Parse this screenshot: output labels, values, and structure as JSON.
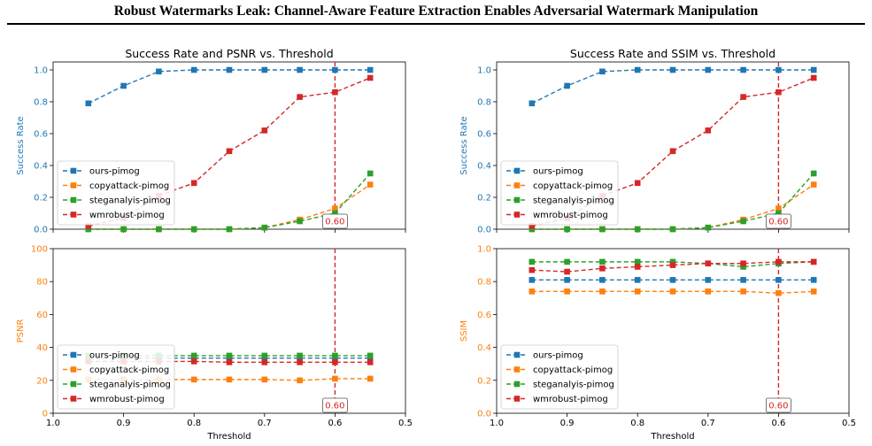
{
  "paper_title": "Robust Watermarks Leak: Channel-Aware Feature Extraction Enables Adversarial Watermark Manipulation",
  "chart_data": [
    {
      "type": "line",
      "title": "Success Rate and PSNR vs. Threshold",
      "xlabel": "Threshold",
      "xlim": [
        1.0,
        0.5
      ],
      "xticks": [
        "1.0",
        "0.9",
        "0.8",
        "0.7",
        "0.6",
        "0.5"
      ],
      "x": [
        0.95,
        0.9,
        0.85,
        0.8,
        0.75,
        0.7,
        0.65,
        0.6,
        0.55
      ],
      "threshold_line": {
        "x": 0.6,
        "label": "0.60",
        "color": "#d62728"
      },
      "top": {
        "ylabel": "Success Rate",
        "ylabel_color": "#1f77b4",
        "ylim": [
          0,
          1.05
        ],
        "yticks": [
          "0.0",
          "0.2",
          "0.4",
          "0.6",
          "0.8",
          "1.0"
        ],
        "legend": "lower-left",
        "series": [
          {
            "name": "ours-pimog",
            "color": "#1f77b4",
            "values": [
              0.79,
              0.9,
              0.99,
              1.0,
              1.0,
              1.0,
              1.0,
              1.0,
              1.0
            ]
          },
          {
            "name": "copyattack-pimog",
            "color": "#ff7f0e",
            "values": [
              0.0,
              0.0,
              0.0,
              0.0,
              0.0,
              0.01,
              0.06,
              0.13,
              0.28
            ]
          },
          {
            "name": "steganalyis-pimog",
            "color": "#2ca02c",
            "values": [
              0.0,
              0.0,
              0.0,
              0.0,
              0.0,
              0.01,
              0.05,
              0.1,
              0.35
            ]
          },
          {
            "name": "wmrobust-pimog",
            "color": "#d62728",
            "values": [
              0.02,
              0.07,
              0.21,
              0.29,
              0.49,
              0.62,
              0.83,
              0.86,
              0.95
            ]
          }
        ]
      },
      "bottom": {
        "ylabel": "PSNR",
        "ylabel_color": "#ff7f0e",
        "ylim": [
          0,
          100
        ],
        "yticks": [
          "0",
          "20",
          "40",
          "60",
          "80",
          "100"
        ],
        "legend": "lower-left",
        "series": [
          {
            "name": "ours-pimog",
            "color": "#1f77b4",
            "values": [
              33.5,
              33.5,
              33.5,
              33.5,
              33.5,
              33.5,
              33.5,
              33.5,
              33.5
            ]
          },
          {
            "name": "copyattack-pimog",
            "color": "#ff7f0e",
            "values": [
              20.5,
              20.5,
              20.5,
              20.5,
              20.5,
              20.5,
              20,
              21,
              21
            ]
          },
          {
            "name": "steganalyis-pimog",
            "color": "#2ca02c",
            "values": [
              35,
              35,
              35,
              35,
              35,
              35,
              35,
              35,
              35
            ]
          },
          {
            "name": "wmrobust-pimog",
            "color": "#d62728",
            "values": [
              31.5,
              31.5,
              31.5,
              31.5,
              31,
              31,
              31,
              31,
              31
            ]
          }
        ]
      }
    },
    {
      "type": "line",
      "title": "Success Rate and SSIM vs. Threshold",
      "xlabel": "Threshold",
      "xlim": [
        1.0,
        0.5
      ],
      "xticks": [
        "1.0",
        "0.9",
        "0.8",
        "0.7",
        "0.6",
        "0.5"
      ],
      "x": [
        0.95,
        0.9,
        0.85,
        0.8,
        0.75,
        0.7,
        0.65,
        0.6,
        0.55
      ],
      "threshold_line": {
        "x": 0.6,
        "label": "0.60",
        "color": "#d62728"
      },
      "top": {
        "ylabel": "Success Rate",
        "ylabel_color": "#1f77b4",
        "ylim": [
          0,
          1.05
        ],
        "yticks": [
          "0.0",
          "0.2",
          "0.4",
          "0.6",
          "0.8",
          "1.0"
        ],
        "legend": "lower-left",
        "series": [
          {
            "name": "ours-pimog",
            "color": "#1f77b4",
            "values": [
              0.79,
              0.9,
              0.99,
              1.0,
              1.0,
              1.0,
              1.0,
              1.0,
              1.0
            ]
          },
          {
            "name": "copyattack-pimog",
            "color": "#ff7f0e",
            "values": [
              0.0,
              0.0,
              0.0,
              0.0,
              0.0,
              0.01,
              0.06,
              0.13,
              0.28
            ]
          },
          {
            "name": "steganalyis-pimog",
            "color": "#2ca02c",
            "values": [
              0.0,
              0.0,
              0.0,
              0.0,
              0.0,
              0.01,
              0.05,
              0.1,
              0.35
            ]
          },
          {
            "name": "wmrobust-pimog",
            "color": "#d62728",
            "values": [
              0.02,
              0.07,
              0.21,
              0.29,
              0.49,
              0.62,
              0.83,
              0.86,
              0.95
            ]
          }
        ]
      },
      "bottom": {
        "ylabel": "SSIM",
        "ylabel_color": "#ff7f0e",
        "ylim": [
          0,
          1.0
        ],
        "yticks": [
          "0.0",
          "0.2",
          "0.4",
          "0.6",
          "0.8",
          "1.0"
        ],
        "legend": "lower-left",
        "series": [
          {
            "name": "ours-pimog",
            "color": "#1f77b4",
            "values": [
              0.81,
              0.81,
              0.81,
              0.81,
              0.81,
              0.81,
              0.81,
              0.81,
              0.81
            ]
          },
          {
            "name": "copyattack-pimog",
            "color": "#ff7f0e",
            "values": [
              0.74,
              0.74,
              0.74,
              0.74,
              0.74,
              0.74,
              0.74,
              0.73,
              0.74
            ]
          },
          {
            "name": "steganalyis-pimog",
            "color": "#2ca02c",
            "values": [
              0.92,
              0.92,
              0.92,
              0.92,
              0.92,
              0.91,
              0.89,
              0.91,
              0.92
            ]
          },
          {
            "name": "wmrobust-pimog",
            "color": "#d62728",
            "values": [
              0.87,
              0.86,
              0.88,
              0.89,
              0.9,
              0.91,
              0.91,
              0.92,
              0.92
            ]
          }
        ]
      }
    }
  ]
}
